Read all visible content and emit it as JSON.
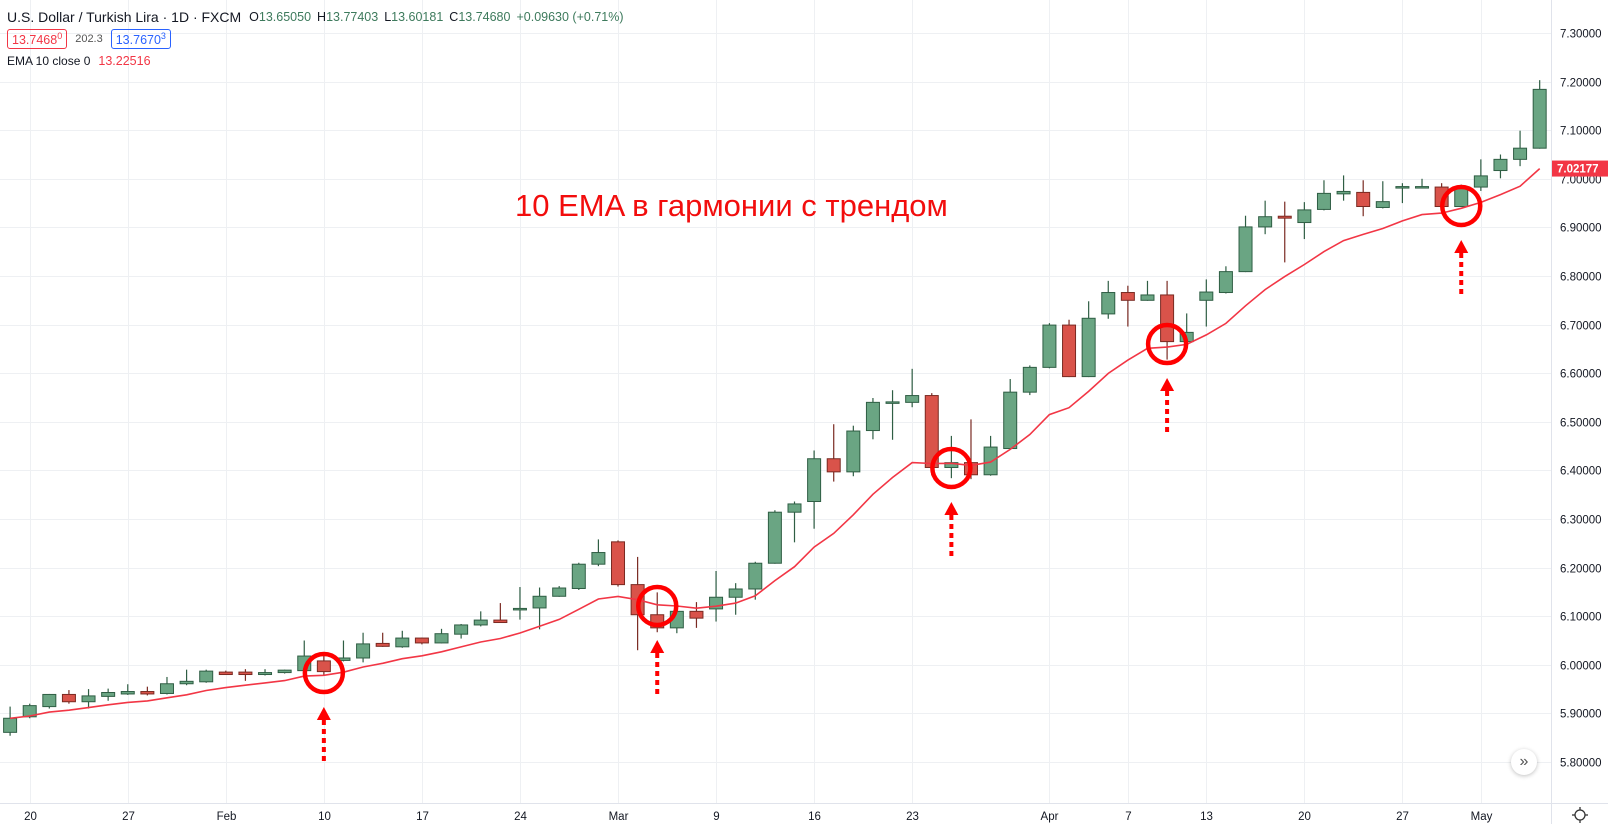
{
  "header": {
    "symbol_title": "U.S. Dollar / Turkish Lira · 1D · FXCM",
    "ohlc": [
      {
        "key": "O",
        "value": "13.65050"
      },
      {
        "key": "H",
        "value": "13.77403"
      },
      {
        "key": "L",
        "value": "13.60181"
      },
      {
        "key": "C",
        "value": "13.74680"
      }
    ],
    "change": "+0.09630 (+0.71%)",
    "bid": "13.7468",
    "bid_sup": "0",
    "spread": "202.3",
    "ask": "13.7670",
    "ask_sup": "3",
    "indicator_name": "EMA 10 close 0",
    "indicator_value": "13.22516"
  },
  "annotation_text": "10 EMA в гармонии с трендом",
  "controls": {
    "scroll_icon": "double-chevron-right-icon",
    "scroll_glyph": "»",
    "settings_icon": "gear-icon"
  },
  "colors": {
    "up_body": "#6aa583",
    "up_border": "#2f5e44",
    "down_body": "#d9534a",
    "down_border": "#7a2a22",
    "ema": "#f23645",
    "marker": "#ff0000",
    "grid": "#eef0f3"
  },
  "chart_data": {
    "type": "candlestick",
    "title": "",
    "ylim": [
      5.8,
      7.3
    ],
    "grid": true,
    "y_ticks": [
      "5.80000",
      "5.90000",
      "6.00000",
      "6.10000",
      "6.20000",
      "6.30000",
      "6.40000",
      "6.50000",
      "6.60000",
      "6.70000",
      "6.80000",
      "6.90000",
      "7.00000",
      "7.10000",
      "7.20000",
      "7.30000"
    ],
    "x_ticks": [
      {
        "label": "20",
        "date": "01-20"
      },
      {
        "label": "27",
        "date": "01-27"
      },
      {
        "label": "Feb",
        "date": "02-03"
      },
      {
        "label": "10",
        "date": "02-10"
      },
      {
        "label": "17",
        "date": "02-17"
      },
      {
        "label": "24",
        "date": "02-24"
      },
      {
        "label": "Mar",
        "date": "03-02"
      },
      {
        "label": "9",
        "date": "03-09"
      },
      {
        "label": "16",
        "date": "03-16"
      },
      {
        "label": "23",
        "date": "03-23"
      },
      {
        "label": "Apr",
        "date": "04-01"
      },
      {
        "label": "7",
        "date": "04-07"
      },
      {
        "label": "13",
        "date": "04-13"
      },
      {
        "label": "20",
        "date": "04-20"
      },
      {
        "label": "27",
        "date": "04-27"
      },
      {
        "label": "May",
        "date": "05-01"
      }
    ],
    "candle_fields": [
      "date",
      "open",
      "high",
      "low",
      "close"
    ],
    "candles": [
      [
        "01-17",
        5.861,
        5.914,
        5.854,
        5.89
      ],
      [
        "01-20",
        5.893,
        5.92,
        5.89,
        5.916
      ],
      [
        "01-21",
        5.914,
        5.94,
        5.91,
        5.939
      ],
      [
        "01-22",
        5.939,
        5.948,
        5.92,
        5.924
      ],
      [
        "01-23",
        5.924,
        5.95,
        5.91,
        5.936
      ],
      [
        "01-24",
        5.935,
        5.951,
        5.926,
        5.943
      ],
      [
        "01-27",
        5.94,
        5.96,
        5.938,
        5.945
      ],
      [
        "01-28",
        5.945,
        5.955,
        5.937,
        5.94
      ],
      [
        "01-29",
        5.941,
        5.975,
        5.939,
        5.961
      ],
      [
        "01-30",
        5.961,
        5.99,
        5.958,
        5.966
      ],
      [
        "01-31",
        5.965,
        5.99,
        5.963,
        5.987
      ],
      [
        "02-03",
        5.985,
        5.988,
        5.979,
        5.98
      ],
      [
        "02-04",
        5.985,
        5.991,
        5.967,
        5.98
      ],
      [
        "02-05",
        5.98,
        5.991,
        5.978,
        5.984
      ],
      [
        "02-06",
        5.984,
        5.99,
        5.982,
        5.989
      ],
      [
        "02-07",
        5.988,
        6.05,
        5.985,
        6.018
      ],
      [
        "02-10",
        6.008,
        6.02,
        5.979,
        5.986
      ],
      [
        "02-11",
        6.009,
        6.05,
        6.007,
        6.014
      ],
      [
        "02-12",
        6.014,
        6.066,
        6.005,
        6.043
      ],
      [
        "02-13",
        6.044,
        6.066,
        6.037,
        6.038
      ],
      [
        "02-14",
        6.037,
        6.07,
        6.035,
        6.055
      ],
      [
        "02-17",
        6.055,
        6.056,
        6.042,
        6.045
      ],
      [
        "02-18",
        6.045,
        6.074,
        6.044,
        6.064
      ],
      [
        "02-19",
        6.063,
        6.084,
        6.054,
        6.082
      ],
      [
        "02-20",
        6.082,
        6.11,
        6.079,
        6.092
      ],
      [
        "02-21",
        6.092,
        6.127,
        6.086,
        6.087
      ],
      [
        "02-24",
        6.115,
        6.16,
        6.093,
        6.116
      ],
      [
        "02-25",
        6.117,
        6.159,
        6.073,
        6.141
      ],
      [
        "02-26",
        6.141,
        6.162,
        6.14,
        6.158
      ],
      [
        "02-27",
        6.157,
        6.21,
        6.154,
        6.207
      ],
      [
        "02-28",
        6.207,
        6.258,
        6.203,
        6.231
      ],
      [
        "03-02",
        6.253,
        6.256,
        6.161,
        6.165
      ],
      [
        "03-03",
        6.165,
        6.222,
        6.03,
        6.103
      ],
      [
        "03-04",
        6.103,
        6.149,
        6.067,
        6.076
      ],
      [
        "03-05",
        6.076,
        6.134,
        6.065,
        6.11
      ],
      [
        "03-06",
        6.11,
        6.129,
        6.076,
        6.096
      ],
      [
        "03-09",
        6.115,
        6.193,
        6.089,
        6.139
      ],
      [
        "03-10",
        6.139,
        6.168,
        6.103,
        6.156
      ],
      [
        "03-11",
        6.156,
        6.212,
        6.134,
        6.209
      ],
      [
        "03-12",
        6.209,
        6.318,
        6.208,
        6.314
      ],
      [
        "03-13",
        6.314,
        6.336,
        6.252,
        6.331
      ],
      [
        "03-16",
        6.336,
        6.441,
        6.28,
        6.424
      ],
      [
        "03-17",
        6.424,
        6.495,
        6.377,
        6.397
      ],
      [
        "03-18",
        6.397,
        6.492,
        6.388,
        6.481
      ],
      [
        "03-19",
        6.482,
        6.549,
        6.464,
        6.54
      ],
      [
        "03-20",
        6.539,
        6.565,
        6.463,
        6.541
      ],
      [
        "03-23",
        6.54,
        6.609,
        6.53,
        6.554
      ],
      [
        "03-24",
        6.554,
        6.559,
        6.39,
        6.406
      ],
      [
        "03-25",
        6.406,
        6.471,
        6.384,
        6.416
      ],
      [
        "03-26",
        6.416,
        6.505,
        6.382,
        6.391
      ],
      [
        "03-27",
        6.391,
        6.471,
        6.389,
        6.448
      ],
      [
        "03-30",
        6.445,
        6.588,
        6.443,
        6.561
      ],
      [
        "03-31",
        6.561,
        6.616,
        6.555,
        6.612
      ],
      [
        "04-01",
        6.612,
        6.703,
        6.61,
        6.699
      ],
      [
        "04-02",
        6.699,
        6.71,
        6.592,
        6.593
      ],
      [
        "04-03",
        6.593,
        6.748,
        6.592,
        6.713
      ],
      [
        "04-06",
        6.722,
        6.79,
        6.712,
        6.766
      ],
      [
        "04-07",
        6.766,
        6.78,
        6.696,
        6.75
      ],
      [
        "04-08",
        6.75,
        6.79,
        6.749,
        6.761
      ],
      [
        "04-09",
        6.761,
        6.79,
        6.628,
        6.665
      ],
      [
        "04-10",
        6.665,
        6.723,
        6.659,
        6.684
      ],
      [
        "04-13",
        6.75,
        6.793,
        6.696,
        6.767
      ],
      [
        "04-14",
        6.766,
        6.82,
        6.764,
        6.809
      ],
      [
        "04-15",
        6.809,
        6.924,
        6.808,
        6.901
      ],
      [
        "04-16",
        6.901,
        6.955,
        6.886,
        6.922
      ],
      [
        "04-17",
        6.923,
        6.953,
        6.828,
        6.919
      ],
      [
        "04-20",
        6.91,
        6.952,
        6.876,
        6.936
      ],
      [
        "04-21",
        6.937,
        6.997,
        6.935,
        6.97
      ],
      [
        "04-22",
        6.969,
        7.007,
        6.955,
        6.974
      ],
      [
        "04-23",
        6.972,
        6.997,
        6.923,
        6.943
      ],
      [
        "04-24",
        6.941,
        6.995,
        6.939,
        6.953
      ],
      [
        "04-27",
        6.981,
        6.991,
        6.95,
        6.984
      ],
      [
        "04-28",
        6.981,
        7.0,
        6.98,
        6.984
      ],
      [
        "04-29",
        6.983,
        6.991,
        6.941,
        6.943
      ],
      [
        "04-30",
        6.943,
        6.988,
        6.942,
        6.984
      ],
      [
        "05-01",
        6.983,
        7.04,
        6.975,
        7.006
      ],
      [
        "05-04",
        7.017,
        7.05,
        7.001,
        7.04
      ],
      [
        "05-05",
        7.04,
        7.099,
        7.026,
        7.063
      ],
      [
        "05-06",
        7.063,
        7.203,
        7.062,
        7.184
      ]
    ],
    "indicator": {
      "type": "EMA",
      "length": 10,
      "source": "close",
      "last_value_label": "7.02177"
    },
    "markers": [
      {
        "date": "02-10",
        "price": 5.983
      },
      {
        "date": "03-04",
        "price": 6.121
      },
      {
        "date": "03-25",
        "price": 6.405
      },
      {
        "date": "04-09",
        "price": 6.66
      },
      {
        "date": "04-30",
        "price": 6.944
      }
    ]
  }
}
